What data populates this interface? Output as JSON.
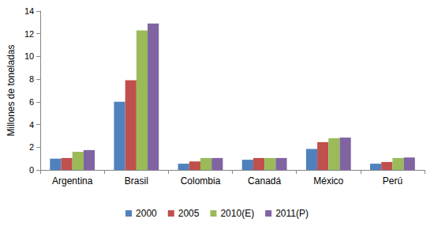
{
  "chart_data": {
    "type": "bar",
    "y_label": "Millones de toneladas",
    "categories": [
      "Argentina",
      "Brasil",
      "Colombia",
      "Canadá",
      "México",
      "Perú"
    ],
    "series": [
      {
        "name": "2000",
        "color": "#4f81bd",
        "values": [
          1.0,
          6.0,
          0.55,
          0.9,
          1.85,
          0.55
        ]
      },
      {
        "name": "2005",
        "color": "#c0504d",
        "values": [
          1.05,
          7.9,
          0.75,
          1.05,
          2.45,
          0.7
        ]
      },
      {
        "name": "2010(E)",
        "color": "#9bbb59",
        "values": [
          1.6,
          12.3,
          1.05,
          1.05,
          2.8,
          1.05
        ]
      },
      {
        "name": "2011(P)",
        "color": "#8064a2",
        "values": [
          1.75,
          12.9,
          1.05,
          1.05,
          2.85,
          1.1
        ]
      }
    ],
    "ylim": [
      0,
      14
    ],
    "yticks": [
      0,
      2,
      4,
      6,
      8,
      10,
      12,
      14
    ],
    "grid": false,
    "legend": "bottom"
  }
}
